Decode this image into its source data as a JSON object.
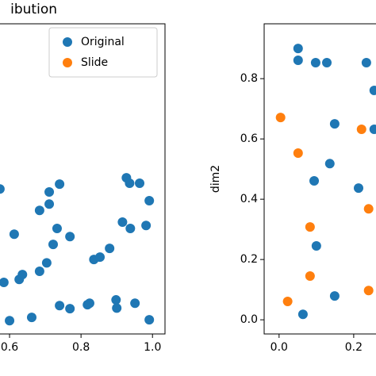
{
  "chart_data": [
    {
      "type": "scatter",
      "title": "ibution",
      "xlim": [
        -0.035,
        1.035
      ],
      "ylim": [
        -0.047,
        0.982
      ],
      "xticks": [
        0.6,
        0.8,
        {
          "value": 1,
          "label": "1.0"
        }
      ],
      "legend": true,
      "legend_loc": "upper right",
      "series": [
        {
          "name": "Original",
          "color": "#1f77b4",
          "x": [
            0.573,
            0.613,
            0.584,
            0.627,
            0.636,
            0.6,
            0.662,
            0.684,
            0.711,
            0.711,
            0.74,
            0.733,
            0.722,
            0.704,
            0.684,
            0.769,
            0.74,
            0.769,
            0.818,
            0.824,
            0.836,
            0.853,
            0.88,
            0.898,
            0.9,
            0.916,
            0.927,
            0.936,
            0.938,
            0.951,
            0.964,
            0.982,
            0.991,
            0.991
          ],
          "values": [
            0.434,
            0.284,
            0.124,
            0.134,
            0.15,
            -0.003,
            0.008,
            0.363,
            0.384,
            0.424,
            0.45,
            0.303,
            0.25,
            0.189,
            0.161,
            0.276,
            0.047,
            0.037,
            0.05,
            0.055,
            0.2,
            0.208,
            0.237,
            0.066,
            0.039,
            0.324,
            0.471,
            0.453,
            0.303,
            0.055,
            0.453,
            0.313,
            0.395,
            0.0
          ]
        },
        {
          "name": "Slide",
          "color": "#ff7f0e",
          "x": [],
          "values": []
        }
      ]
    },
    {
      "type": "scatter",
      "ylabel": "dim2",
      "xlim": [
        -0.04,
        1.04
      ],
      "ylim": [
        -0.047,
        0.982
      ],
      "xticks": [
        {
          "value": 0,
          "label": "0.0"
        },
        0.2
      ],
      "yticks": [
        {
          "value": 0,
          "label": "0.0"
        },
        0.2,
        0.4,
        0.6,
        0.8
      ],
      "legend": false,
      "series": [
        {
          "name": "Original",
          "color": "#1f77b4",
          "x": [
            0.051,
            0.051,
            0.098,
            0.128,
            0.234,
            0.255,
            0.149,
            0.255,
            0.136,
            0.213,
            0.094,
            0.1,
            0.149,
            0.064
          ],
          "values": [
            0.9,
            0.861,
            0.853,
            0.853,
            0.853,
            0.761,
            0.65,
            0.632,
            0.518,
            0.437,
            0.461,
            0.245,
            0.079,
            0.018
          ]
        },
        {
          "name": "Slide",
          "color": "#ff7f0e",
          "x": [
            0.004,
            0.221,
            0.051,
            0.24,
            0.083,
            0.083,
            0.24,
            0.023
          ],
          "values": [
            0.671,
            0.632,
            0.553,
            0.368,
            0.308,
            0.145,
            0.097,
            0.061
          ]
        }
      ]
    }
  ]
}
